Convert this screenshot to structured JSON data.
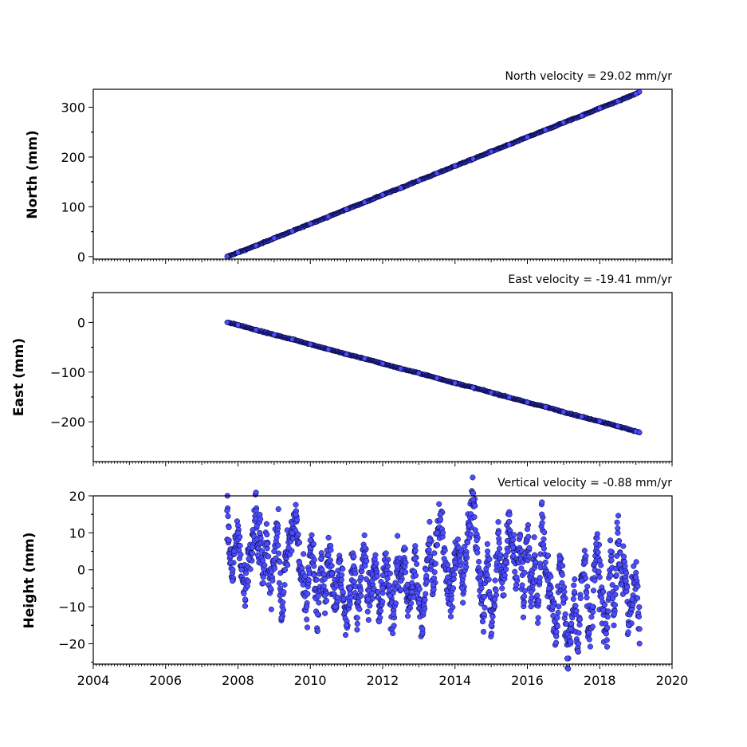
{
  "chart_data": [
    {
      "type": "scatter",
      "title": "North velocity = 29.02 mm/yr",
      "xlabel": "",
      "ylabel": "North (mm)",
      "xlim": [
        2004,
        2020
      ],
      "ylim": [
        -5,
        336
      ],
      "yticks": [
        0,
        100,
        200,
        300
      ],
      "xticks": [],
      "grid": false,
      "marker_color": "#4c4cff",
      "marker_edge": "#000033",
      "series": [
        {
          "x": [
            2007.7,
            2008.0,
            2008.5,
            2009.0,
            2009.5,
            2010.0,
            2010.5,
            2011.0,
            2011.5,
            2012.0,
            2012.5,
            2013.0,
            2013.5,
            2014.0,
            2014.5,
            2015.0,
            2015.5,
            2016.0,
            2016.5,
            2017.0,
            2017.5,
            2018.0,
            2018.5,
            2019.0,
            2019.1
          ],
          "y": [
            0,
            8,
            22,
            37,
            51,
            66,
            80,
            95,
            109,
            124,
            138,
            153,
            167,
            182,
            196,
            211,
            225,
            240,
            254,
            269,
            283,
            298,
            312,
            327,
            331
          ]
        }
      ]
    },
    {
      "type": "scatter",
      "title": "East velocity = -19.41 mm/yr",
      "xlabel": "",
      "ylabel": "East (mm)",
      "xlim": [
        2004,
        2020
      ],
      "ylim": [
        -280,
        60
      ],
      "yticks": [
        0,
        -100,
        -200
      ],
      "ytick_labels": [
        "0",
        "−100",
        "−200"
      ],
      "xticks": [],
      "grid": false,
      "marker_color": "#4c4cff",
      "marker_edge": "#000033",
      "series": [
        {
          "x": [
            2007.7,
            2008.0,
            2008.5,
            2009.0,
            2009.5,
            2010.0,
            2010.5,
            2011.0,
            2011.5,
            2012.0,
            2012.5,
            2013.0,
            2013.5,
            2014.0,
            2014.5,
            2015.0,
            2015.5,
            2016.0,
            2016.5,
            2017.0,
            2017.5,
            2018.0,
            2018.5,
            2019.0,
            2019.1
          ],
          "y": [
            0,
            -5,
            -15,
            -25,
            -34,
            -44,
            -54,
            -64,
            -73,
            -83,
            -93,
            -102,
            -112,
            -122,
            -131,
            -141,
            -151,
            -161,
            -170,
            -180,
            -190,
            -199,
            -209,
            -219,
            -221
          ]
        }
      ]
    },
    {
      "type": "scatter",
      "title": "Vertical velocity = -0.88 mm/yr",
      "xlabel": "",
      "ylabel": "Height (mm)",
      "xlim": [
        2004,
        2020
      ],
      "ylim": [
        -25.5,
        20
      ],
      "yticks": [
        20,
        10,
        0,
        -10,
        -20
      ],
      "ytick_labels": [
        "20",
        "10",
        "0",
        "−10",
        "−20"
      ],
      "xticks": [
        2004,
        2006,
        2008,
        2010,
        2012,
        2014,
        2016,
        2018,
        2020
      ],
      "xtick_labels": [
        "2004",
        "2006",
        "2008",
        "2010",
        "2012",
        "2014",
        "2016",
        "2018",
        "2020"
      ],
      "grid": false,
      "marker_color": "#4c4cff",
      "marker_edge": "#000033",
      "series": [
        {
          "x": [
            2007.7,
            2007.75,
            2007.8,
            2007.85,
            2007.9,
            2008.0,
            2008.1,
            2008.2,
            2008.3,
            2008.4,
            2008.5,
            2008.55,
            2008.6,
            2008.7,
            2008.8,
            2008.9,
            2009.0,
            2009.1,
            2009.2,
            2009.3,
            2009.4,
            2009.5,
            2009.6,
            2009.7,
            2009.8,
            2009.9,
            2010.0,
            2010.1,
            2010.2,
            2010.3,
            2010.4,
            2010.5,
            2010.6,
            2010.7,
            2010.8,
            2010.9,
            2011.0,
            2011.1,
            2011.2,
            2011.3,
            2011.4,
            2011.5,
            2011.6,
            2011.7,
            2011.8,
            2011.9,
            2012.0,
            2012.1,
            2012.2,
            2012.3,
            2012.4,
            2012.5,
            2012.6,
            2012.7,
            2012.8,
            2012.9,
            2013.0,
            2013.1,
            2013.2,
            2013.3,
            2013.4,
            2013.5,
            2013.6,
            2013.7,
            2013.8,
            2013.9,
            2014.0,
            2014.1,
            2014.2,
            2014.3,
            2014.4,
            2014.5,
            2014.6,
            2014.7,
            2014.8,
            2014.9,
            2015.0,
            2015.1,
            2015.2,
            2015.3,
            2015.4,
            2015.5,
            2015.6,
            2015.7,
            2015.8,
            2015.9,
            2016.0,
            2016.1,
            2016.2,
            2016.3,
            2016.4,
            2016.5,
            2016.6,
            2016.7,
            2016.8,
            2016.9,
            2017.0,
            2017.05,
            2017.1,
            2017.2,
            2017.3,
            2017.4,
            2017.5,
            2017.6,
            2017.7,
            2017.8,
            2017.9,
            2018.0,
            2018.1,
            2018.2,
            2018.3,
            2018.4,
            2018.5,
            2018.6,
            2018.7,
            2018.8,
            2018.9,
            2019.0,
            2019.1
          ],
          "y": [
            16,
            8,
            2,
            -3,
            5,
            10,
            0,
            -8,
            3,
            6,
            16,
            4,
            10,
            -2,
            7,
            -5,
            5,
            12,
            -13,
            0,
            6,
            10,
            15,
            2,
            -4,
            -10,
            8,
            1,
            -12,
            3,
            -7,
            4,
            -1,
            -10,
            2,
            -6,
            -15,
            -5,
            1,
            -13,
            -2,
            6,
            -8,
            -3,
            4,
            -14,
            -5,
            2,
            -7,
            -12,
            1,
            -3,
            6,
            -11,
            -6,
            3,
            -9,
            -16,
            0,
            8,
            -4,
            10,
            15,
            3,
            -2,
            -8,
            2,
            6,
            -5,
            4,
            12,
            19,
            8,
            -3,
            -12,
            5,
            -15,
            -8,
            10,
            -5,
            2,
            13,
            6,
            -2,
            9,
            -9,
            11,
            -6,
            4,
            -13,
            15,
            2,
            -5,
            -10,
            -18,
            3,
            -8,
            -12,
            -24,
            -16,
            -6,
            -22,
            -3,
            2,
            -17,
            -10,
            7,
            -2,
            -11,
            -19,
            5,
            -12,
            10,
            -4,
            1,
            -15,
            -8,
            -2,
            -16
          ]
        }
      ]
    }
  ]
}
